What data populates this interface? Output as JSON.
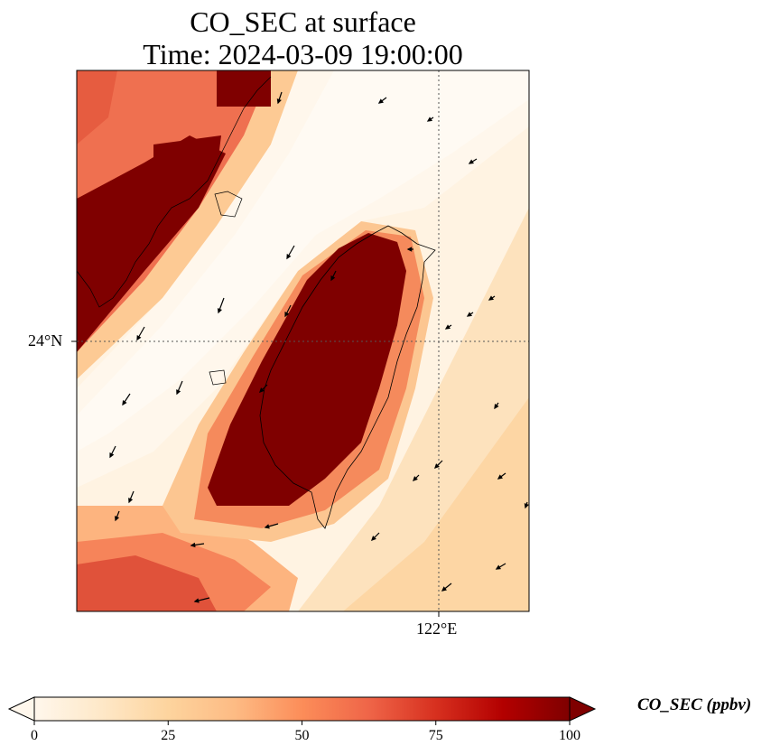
{
  "title": {
    "line1": "CO_SEC at surface",
    "line2": "Time: 2024-03-09 19:00:00"
  },
  "axes": {
    "lat_tick": "24°N",
    "lon_tick": "122°E"
  },
  "colorbar": {
    "label": "CO_SEC (ppbv)",
    "ticks": [
      "0",
      "25",
      "50",
      "75",
      "100"
    ],
    "range": [
      0,
      100
    ],
    "extend": "both",
    "colormap": "OrRd",
    "stops": [
      "#fff7ec",
      "#fee8c8",
      "#fdd49e",
      "#fdbb84",
      "#fc8d59",
      "#ef6548",
      "#d7301f",
      "#b30000",
      "#7f0000"
    ]
  },
  "map": {
    "region": "Taiwan Strait",
    "gridlines": "dotted",
    "wind_vectors": true
  }
}
